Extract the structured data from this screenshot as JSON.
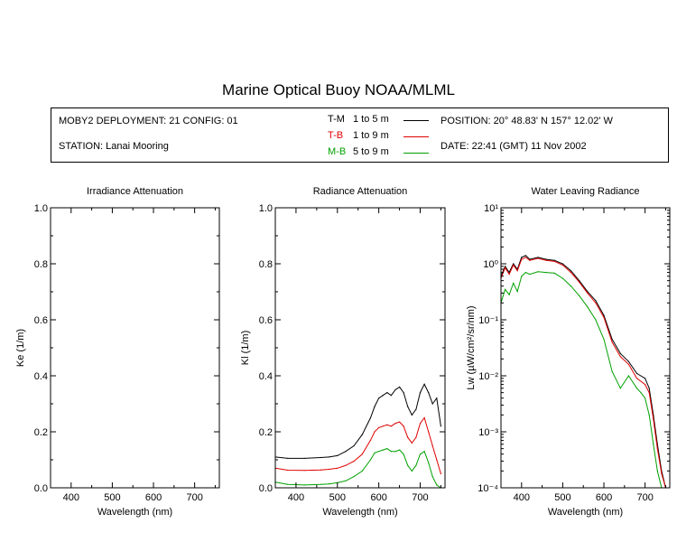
{
  "title": "Marine Optical Buoy NOAA/MLML",
  "info": {
    "deployment": "MOBY2 DEPLOYMENT: 21 CONFIG: 01",
    "station": "STATION: Lanai Mooring",
    "position": "POSITION: 20° 48.83' N   157° 12.02' W",
    "date": "DATE: 22:41 (GMT) 11 Nov 2002",
    "legend": [
      {
        "code": "T-M",
        "range": "1 to 5  m",
        "color": "#000000"
      },
      {
        "code": "T-B",
        "range": "1 to 9  m",
        "color": "#e00000"
      },
      {
        "code": "M-B",
        "range": "5 to 9  m",
        "color": "#00a000"
      }
    ]
  },
  "chart_data": [
    {
      "type": "line",
      "title": "Irradiance Attenuation",
      "xlabel": "Wavelength (nm)",
      "ylabel": "Ke  (1/m)",
      "xlim": [
        350,
        760
      ],
      "ylim": [
        0,
        1
      ],
      "xticks": [
        "400",
        "500",
        "600",
        "700"
      ],
      "yticks": [
        "0.0",
        "0.2",
        "0.4",
        "0.6",
        "0.8",
        "1.0"
      ],
      "series": []
    },
    {
      "type": "line",
      "title": "Radiance Attenuation",
      "xlabel": "Wavelength (nm)",
      "ylabel": "Kl  (1/m)",
      "xlim": [
        350,
        760
      ],
      "ylim": [
        0,
        1
      ],
      "xticks": [
        "400",
        "500",
        "600",
        "700"
      ],
      "yticks": [
        "0.0",
        "0.2",
        "0.4",
        "0.6",
        "0.8",
        "1.0"
      ],
      "series": [
        {
          "name": "T-M",
          "color": "#000000",
          "x": [
            350,
            380,
            420,
            460,
            480,
            500,
            520,
            540,
            560,
            580,
            590,
            600,
            610,
            620,
            630,
            640,
            650,
            660,
            670,
            680,
            690,
            700,
            710,
            720,
            730,
            740,
            750
          ],
          "y": [
            0.11,
            0.105,
            0.105,
            0.108,
            0.11,
            0.115,
            0.13,
            0.15,
            0.19,
            0.25,
            0.29,
            0.32,
            0.33,
            0.34,
            0.33,
            0.35,
            0.36,
            0.34,
            0.29,
            0.26,
            0.28,
            0.34,
            0.37,
            0.34,
            0.3,
            0.32,
            0.22
          ]
        },
        {
          "name": "T-B",
          "color": "#e00000",
          "x": [
            350,
            380,
            420,
            460,
            480,
            500,
            520,
            540,
            560,
            580,
            590,
            600,
            610,
            620,
            630,
            640,
            650,
            660,
            670,
            680,
            690,
            700,
            710,
            720,
            730,
            740,
            750
          ],
          "y": [
            0.07,
            0.063,
            0.062,
            0.064,
            0.066,
            0.07,
            0.08,
            0.095,
            0.12,
            0.17,
            0.2,
            0.215,
            0.22,
            0.225,
            0.22,
            0.23,
            0.235,
            0.22,
            0.18,
            0.16,
            0.18,
            0.23,
            0.25,
            0.2,
            0.15,
            0.1,
            0.05
          ]
        },
        {
          "name": "M-B",
          "color": "#00a000",
          "x": [
            350,
            380,
            420,
            460,
            480,
            500,
            520,
            540,
            560,
            580,
            590,
            600,
            610,
            620,
            630,
            640,
            650,
            660,
            670,
            680,
            690,
            700,
            710,
            720,
            730,
            740,
            750
          ],
          "y": [
            0.02,
            0.012,
            0.01,
            0.012,
            0.014,
            0.018,
            0.025,
            0.04,
            0.06,
            0.1,
            0.125,
            0.13,
            0.135,
            0.14,
            0.13,
            0.13,
            0.135,
            0.12,
            0.08,
            0.06,
            0.08,
            0.12,
            0.13,
            0.09,
            0.04,
            0.01,
            0.0
          ]
        }
      ]
    },
    {
      "type": "line",
      "title": "Water Leaving Radiance",
      "xlabel": "Wavelength (nm)",
      "ylabel": "Lw  (µW/cm²/sr/nm)",
      "xlim": [
        350,
        760
      ],
      "ylim": [
        0.0001,
        10
      ],
      "yscale": "log",
      "xticks": [
        "400",
        "500",
        "600",
        "700"
      ],
      "yticks": [
        "10⁻⁴",
        "10⁻³",
        "10⁻²",
        "10⁻¹",
        "10⁰",
        "10¹"
      ],
      "series": [
        {
          "name": "T-M",
          "color": "#000000",
          "x": [
            350,
            360,
            370,
            380,
            390,
            400,
            410,
            420,
            440,
            460,
            480,
            500,
            520,
            540,
            560,
            580,
            600,
            620,
            640,
            660,
            680,
            700,
            710,
            720,
            730,
            740,
            750
          ],
          "y": [
            0.6,
            0.9,
            0.7,
            1.0,
            0.8,
            1.3,
            1.4,
            1.2,
            1.3,
            1.2,
            1.15,
            1.0,
            0.75,
            0.5,
            0.32,
            0.22,
            0.12,
            0.045,
            0.025,
            0.018,
            0.011,
            0.009,
            0.006,
            0.002,
            0.0006,
            0.0002,
            0.0001
          ]
        },
        {
          "name": "T-B",
          "color": "#e00000",
          "x": [
            350,
            360,
            370,
            380,
            390,
            400,
            410,
            420,
            440,
            460,
            480,
            500,
            520,
            540,
            560,
            580,
            600,
            620,
            640,
            660,
            680,
            700,
            710,
            720,
            730,
            740,
            750
          ],
          "y": [
            0.55,
            0.85,
            0.65,
            0.95,
            0.75,
            1.2,
            1.3,
            1.15,
            1.25,
            1.15,
            1.1,
            0.95,
            0.7,
            0.47,
            0.3,
            0.2,
            0.11,
            0.04,
            0.022,
            0.016,
            0.009,
            0.007,
            0.005,
            0.0017,
            0.0005,
            0.00018,
            0.0001
          ]
        },
        {
          "name": "M-B",
          "color": "#00a000",
          "x": [
            350,
            360,
            370,
            380,
            390,
            400,
            410,
            420,
            440,
            460,
            480,
            500,
            520,
            540,
            560,
            580,
            600,
            620,
            640,
            660,
            680,
            690,
            700,
            710,
            720,
            730,
            740
          ],
          "y": [
            0.2,
            0.35,
            0.28,
            0.45,
            0.32,
            0.6,
            0.7,
            0.65,
            0.72,
            0.7,
            0.68,
            0.55,
            0.4,
            0.27,
            0.17,
            0.1,
            0.045,
            0.012,
            0.006,
            0.01,
            0.006,
            0.005,
            0.004,
            0.002,
            0.0006,
            0.0002,
            0.0001
          ]
        }
      ]
    }
  ]
}
